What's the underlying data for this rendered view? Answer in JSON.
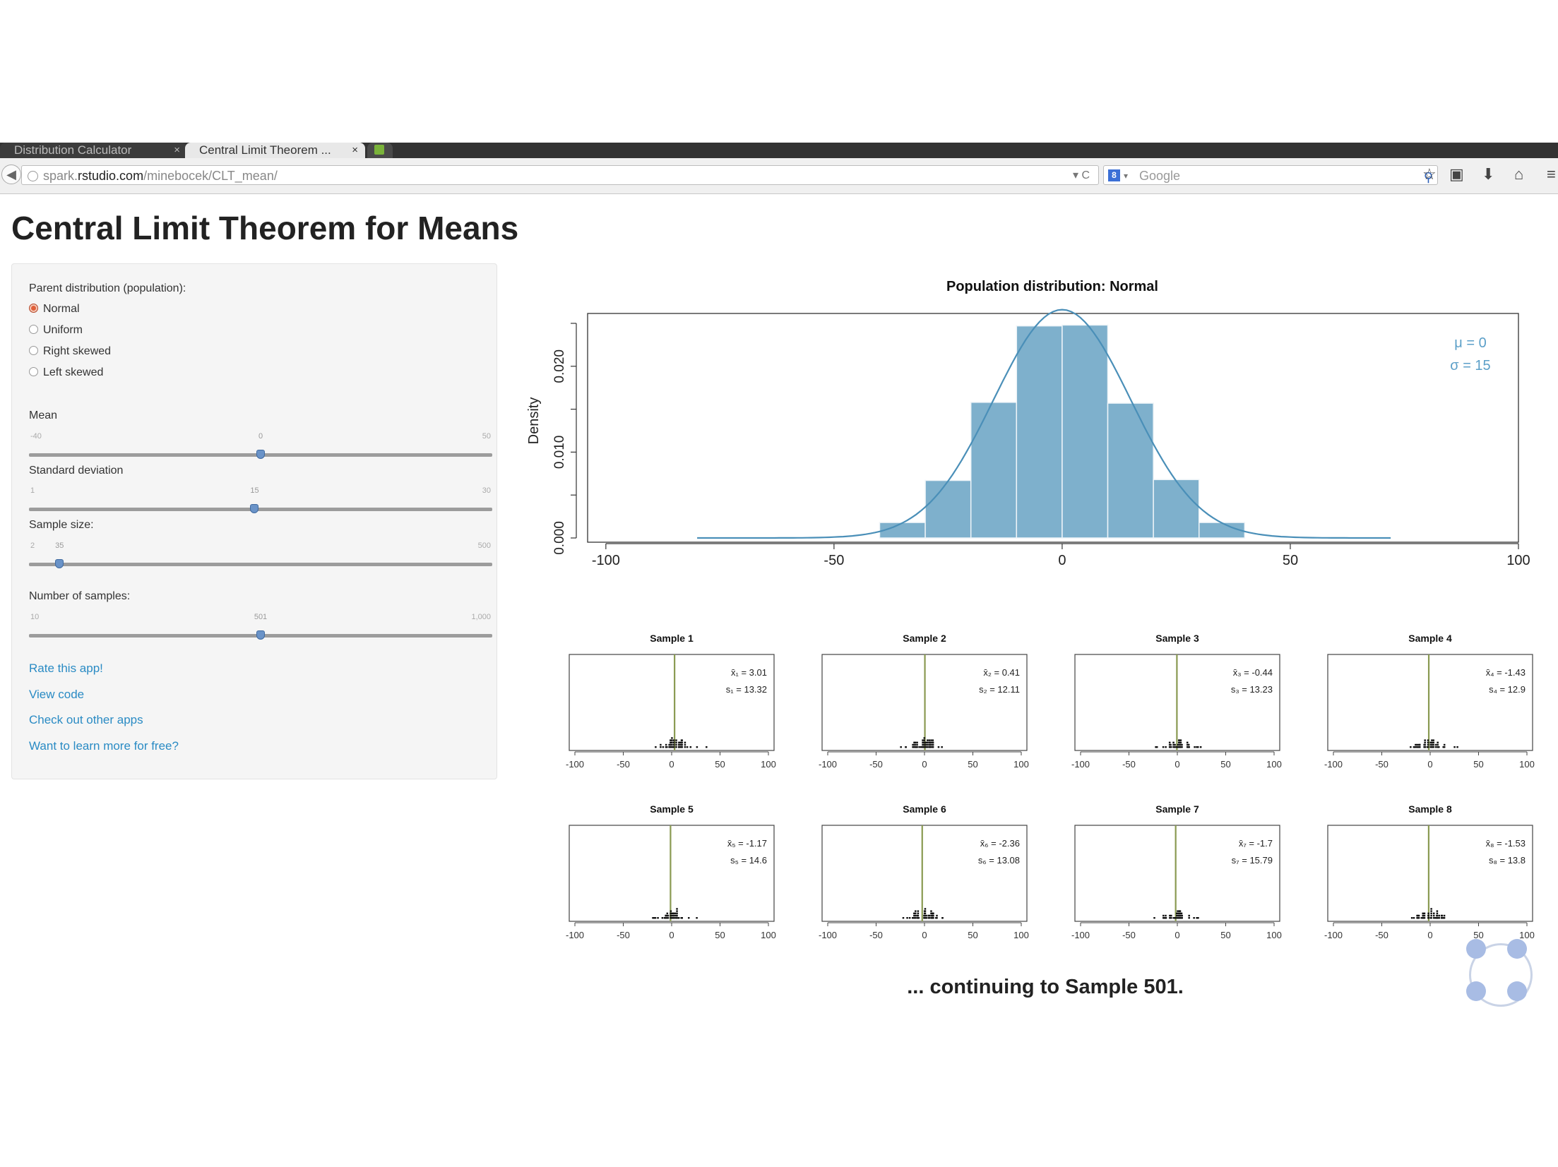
{
  "browser": {
    "tabs": [
      {
        "label": "Distribution Calculator",
        "close": "×",
        "active": false
      },
      {
        "label": "Central Limit Theorem ...",
        "close": "×",
        "active": true
      }
    ],
    "url_prefix": "spark.",
    "url_domain": "rstudio.com",
    "url_path": "/minebocek/CLT_mean/",
    "url_controls": "▾ C",
    "search_engine_badge": "8",
    "search_caret": "▾",
    "search_placeholder": "Google",
    "icons": [
      "back-icon",
      "globe-icon",
      "search-icon",
      "star-icon",
      "clipboard-icon",
      "download-icon",
      "home-icon",
      "menu-icon"
    ]
  },
  "page": {
    "title": "Central Limit Theorem for Means",
    "continuing": "... continuing to Sample 501."
  },
  "sidebar": {
    "parent_label": "Parent distribution (population):",
    "options": [
      {
        "label": "Normal",
        "selected": true
      },
      {
        "label": "Uniform",
        "selected": false
      },
      {
        "label": "Right skewed",
        "selected": false
      },
      {
        "label": "Left skewed",
        "selected": false
      }
    ],
    "mean": {
      "label": "Mean",
      "min": "-40",
      "max": "50",
      "value": "0",
      "fraction": 0.5
    },
    "sd": {
      "label": "Standard deviation",
      "min": "1",
      "max": "30",
      "value": "15",
      "fraction": 0.487
    },
    "sample_size": {
      "label": "Sample size:",
      "min": "2",
      "max": "500",
      "value": "35",
      "fraction": 0.066
    },
    "num_samples": {
      "label": "Number of samples:",
      "min": "10",
      "max": "1,000",
      "value": "501",
      "fraction": 0.5
    },
    "links": [
      "Rate this app!",
      "View code",
      "Check out other apps",
      "Want to learn more for free?"
    ]
  },
  "chart_data": [
    {
      "type": "bar",
      "title": "Population distribution: Normal",
      "xlabel": "",
      "ylabel": "Density",
      "xlim": [
        -100,
        100
      ],
      "ylim": [
        0,
        0.025
      ],
      "xticks": [
        "-100",
        "-50",
        "0",
        "50",
        "100"
      ],
      "yticks": [
        "0.000",
        "0.010",
        "0.020"
      ],
      "bins": [
        {
          "x0": -40,
          "x1": -30,
          "y": 0.0018
        },
        {
          "x0": -30,
          "x1": -20,
          "y": 0.0067
        },
        {
          "x0": -20,
          "x1": -10,
          "y": 0.0158
        },
        {
          "x0": -10,
          "x1": 0,
          "y": 0.0247
        },
        {
          "x0": 0,
          "x1": 10,
          "y": 0.0248
        },
        {
          "x0": 10,
          "x1": 20,
          "y": 0.0157
        },
        {
          "x0": 20,
          "x1": 30,
          "y": 0.0068
        },
        {
          "x0": 30,
          "x1": 40,
          "y": 0.0018
        }
      ],
      "density_curve": {
        "mean": 0,
        "sd": 15,
        "from": -80,
        "to": 72
      },
      "annotations": [
        "μ = 0",
        "σ = 15"
      ],
      "bar_color": "#7eb0cc",
      "curve_color": "#4a8fb8",
      "annotation_color": "#5b9fc8"
    },
    {
      "type": "scatter",
      "panels": [
        {
          "title": "Sample 1",
          "mean_label": "x̄₁ = 3.01",
          "sd_label": "s₁ = 13.32"
        },
        {
          "title": "Sample 2",
          "mean_label": "x̄₂ = 0.41",
          "sd_label": "s₂ = 12.11"
        },
        {
          "title": "Sample 3",
          "mean_label": "x̄₃ = -0.44",
          "sd_label": "s₃ = 13.23"
        },
        {
          "title": "Sample 4",
          "mean_label": "x̄₄ = -1.43",
          "sd_label": "s₄ = 12.9"
        },
        {
          "title": "Sample 5",
          "mean_label": "x̄₅ = -1.17",
          "sd_label": "s₅ = 14.6"
        },
        {
          "title": "Sample 6",
          "mean_label": "x̄₆ = -2.36",
          "sd_label": "s₆ = 13.08"
        },
        {
          "title": "Sample 7",
          "mean_label": "x̄₇ = -1.7",
          "sd_label": "s₇ = 15.79"
        },
        {
          "title": "Sample 8",
          "mean_label": "x̄₈ = -1.53",
          "sd_label": "s₈ = 13.8"
        }
      ],
      "xlim": [
        -100,
        100
      ],
      "xticks": [
        "-100",
        "-50",
        "0",
        "50",
        "100"
      ],
      "mean_line_color": "#8a9a52",
      "point_color": "#111111"
    }
  ]
}
